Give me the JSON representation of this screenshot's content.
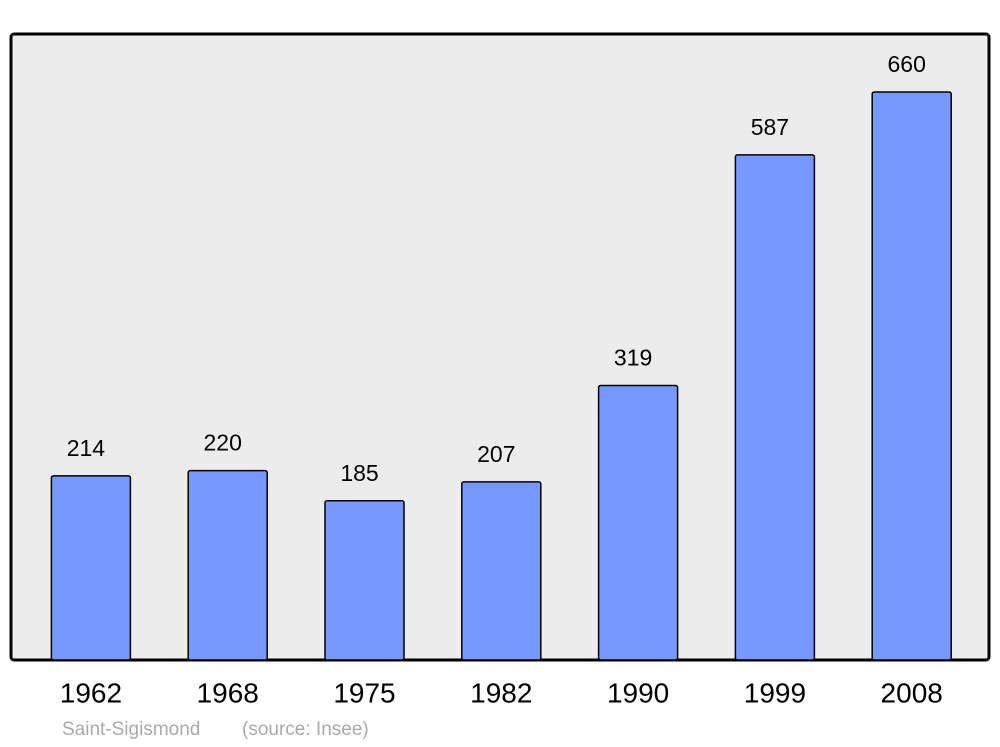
{
  "chart_data": {
    "type": "bar",
    "categories": [
      "1962",
      "1968",
      "1975",
      "1982",
      "1990",
      "1999",
      "2008"
    ],
    "values": [
      214,
      220,
      185,
      207,
      319,
      587,
      660
    ],
    "color": "#7799ff",
    "caption": "Saint-Sigismond",
    "source": "(source: Insee)"
  }
}
